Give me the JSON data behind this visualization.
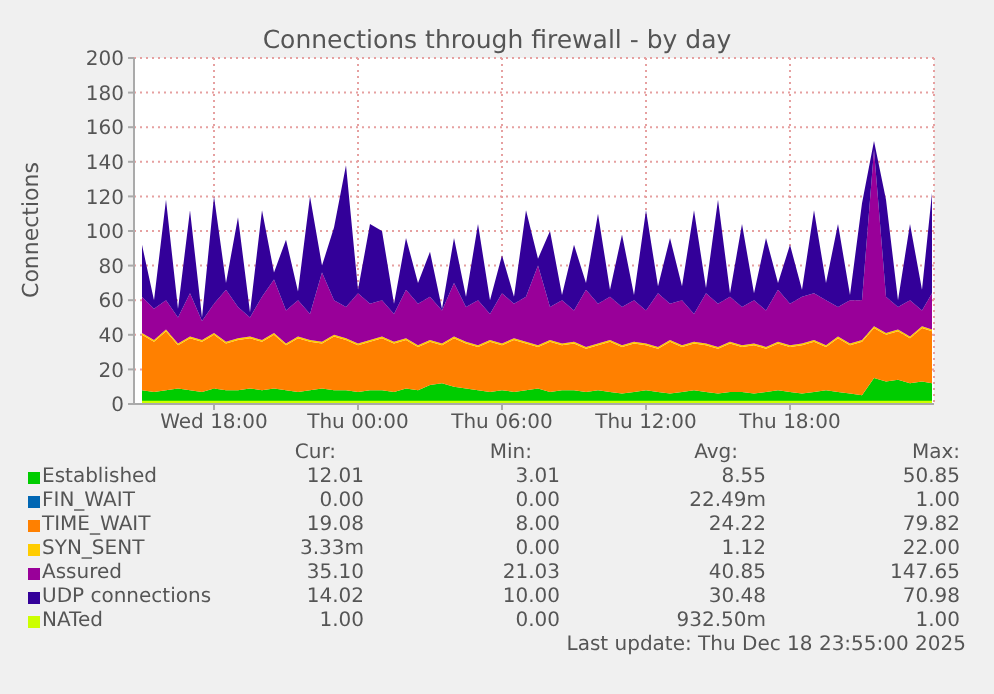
{
  "chart_data": {
    "type": "area",
    "title": "Connections through firewall - by day",
    "ylabel": "Connections",
    "x": [
      "2025-12-17T15:00",
      "2025-12-17T15:30",
      "2025-12-17T16:00",
      "2025-12-17T16:30",
      "2025-12-17T17:00",
      "2025-12-17T17:30",
      "2025-12-17T18:00",
      "2025-12-17T18:30",
      "2025-12-17T19:00",
      "2025-12-17T19:30",
      "2025-12-17T20:00",
      "2025-12-17T20:30",
      "2025-12-17T21:00",
      "2025-12-17T21:30",
      "2025-12-17T22:00",
      "2025-12-17T22:30",
      "2025-12-17T23:00",
      "2025-12-17T23:30",
      "2025-12-18T00:00",
      "2025-12-18T00:30",
      "2025-12-18T01:00",
      "2025-12-18T01:30",
      "2025-12-18T02:00",
      "2025-12-18T02:30",
      "2025-12-18T03:00",
      "2025-12-18T03:30",
      "2025-12-18T04:00",
      "2025-12-18T04:30",
      "2025-12-18T05:00",
      "2025-12-18T05:30",
      "2025-12-18T06:00",
      "2025-12-18T06:30",
      "2025-12-18T07:00",
      "2025-12-18T07:30",
      "2025-12-18T08:00",
      "2025-12-18T08:30",
      "2025-12-18T09:00",
      "2025-12-18T09:30",
      "2025-12-18T10:00",
      "2025-12-18T10:30",
      "2025-12-18T11:00",
      "2025-12-18T11:30",
      "2025-12-18T12:00",
      "2025-12-18T12:30",
      "2025-12-18T13:00",
      "2025-12-18T13:30",
      "2025-12-18T14:00",
      "2025-12-18T14:30",
      "2025-12-18T15:00",
      "2025-12-18T15:30",
      "2025-12-18T16:00",
      "2025-12-18T16:30",
      "2025-12-18T17:00",
      "2025-12-18T17:30",
      "2025-12-18T18:00",
      "2025-12-18T18:30",
      "2025-12-18T19:00",
      "2025-12-18T19:30",
      "2025-12-18T20:00",
      "2025-12-18T20:30",
      "2025-12-18T21:00",
      "2025-12-18T21:30",
      "2025-12-18T22:00",
      "2025-12-18T22:30",
      "2025-12-18T23:00",
      "2025-12-18T23:30",
      "2025-12-18T23:55"
    ],
    "series": [
      {
        "name": "Established",
        "color": "#00cc00",
        "values": [
          8,
          7,
          8,
          9,
          8,
          7,
          9,
          8,
          8,
          9,
          8,
          9,
          8,
          7,
          8,
          9,
          8,
          8,
          7,
          8,
          8,
          7,
          9,
          8,
          11,
          12,
          10,
          9,
          8,
          7,
          8,
          7,
          8,
          9,
          7,
          8,
          8,
          7,
          8,
          7,
          6,
          7,
          8,
          7,
          6,
          7,
          8,
          7,
          6,
          7,
          7,
          6,
          7,
          8,
          7,
          6,
          7,
          8,
          7,
          6,
          5,
          15,
          13,
          14,
          12,
          13,
          12
        ]
      },
      {
        "name": "FIN_WAIT",
        "color": "#0066b3",
        "values": [
          null,
          null,
          null,
          null,
          null,
          null,
          null,
          null,
          null,
          null,
          null,
          null,
          null,
          null,
          null,
          null,
          null,
          null,
          null,
          null,
          null,
          null,
          null,
          null,
          null,
          null,
          null,
          null,
          null,
          null,
          null,
          null,
          null,
          null,
          null,
          null,
          null,
          null,
          null,
          null,
          null,
          null,
          null,
          null,
          null,
          null,
          null,
          null,
          null,
          null,
          null,
          null,
          null,
          null,
          null,
          null,
          null,
          null,
          null,
          null,
          null,
          null,
          null,
          null,
          null,
          null,
          null
        ]
      },
      {
        "name": "TIME_WAIT",
        "color": "#ff8000",
        "values": [
          32,
          29,
          34,
          25,
          30,
          29,
          31,
          27,
          29,
          29,
          28,
          31,
          26,
          31,
          28,
          26,
          31,
          29,
          27,
          28,
          30,
          28,
          28,
          25,
          25,
          22,
          28,
          26,
          25,
          29,
          26,
          30,
          27,
          24,
          29,
          26,
          27,
          25,
          26,
          29,
          27,
          28,
          26,
          25,
          30,
          26,
          27,
          27,
          26,
          28,
          26,
          28,
          25,
          27,
          26,
          28,
          29,
          25,
          31,
          28,
          31,
          29,
          27,
          28,
          26,
          31,
          30
        ]
      },
      {
        "name": "SYN_SENT",
        "color": "#ffcc00",
        "values": [
          1,
          1,
          1,
          1,
          1,
          1,
          1,
          1,
          1,
          1,
          1,
          1,
          1,
          1,
          1,
          1,
          1,
          1,
          1,
          1,
          1,
          1,
          1,
          1,
          1,
          1,
          1,
          1,
          1,
          1,
          1,
          1,
          1,
          1,
          1,
          1,
          1,
          1,
          1,
          1,
          1,
          1,
          1,
          1,
          1,
          1,
          1,
          1,
          1,
          1,
          1,
          1,
          1,
          1,
          1,
          1,
          1,
          1,
          1,
          1,
          1,
          1,
          1,
          1,
          1,
          1,
          1
        ]
      },
      {
        "name": "Assured",
        "color": "#990099",
        "values": [
          21,
          18,
          17,
          15,
          25,
          11,
          17,
          30,
          18,
          11,
          25,
          31,
          19,
          21,
          15,
          40,
          20,
          18,
          29,
          21,
          21,
          16,
          28,
          24,
          25,
          19,
          31,
          20,
          26,
          15,
          29,
          20,
          26,
          46,
          19,
          25,
          18,
          33,
          23,
          25,
          22,
          24,
          19,
          31,
          21,
          26,
          16,
          29,
          25,
          26,
          22,
          25,
          21,
          30,
          24,
          27,
          27,
          26,
          17,
          25,
          23,
          102,
          21,
          13,
          21,
          9,
          21
        ]
      },
      {
        "name": "UDP connections",
        "color": "#330099",
        "values": [
          30,
          5,
          58,
          5,
          48,
          2,
          62,
          4,
          52,
          3,
          50,
          4,
          41,
          5,
          68,
          4,
          42,
          82,
          2,
          46,
          40,
          6,
          30,
          12,
          26,
          1,
          26,
          6,
          44,
          8,
          22,
          4,
          50,
          4,
          44,
          3,
          38,
          4,
          52,
          4,
          42,
          3,
          58,
          4,
          38,
          8,
          60,
          3,
          60,
          2,
          48,
          4,
          42,
          4,
          34,
          4,
          48,
          10,
          48,
          3,
          56,
          5,
          56,
          4,
          44,
          12,
          58
        ]
      },
      {
        "name": "NATed",
        "type": "line",
        "color": "#ccff00",
        "values": [
          1,
          1,
          1,
          1,
          1,
          1,
          1,
          1,
          1,
          1,
          1,
          1,
          1,
          1,
          1,
          1,
          1,
          1,
          1,
          1,
          1,
          1,
          1,
          1,
          1,
          1,
          1,
          1,
          1,
          1,
          1,
          1,
          1,
          1,
          1,
          1,
          1,
          1,
          1,
          1,
          1,
          1,
          1,
          1,
          1,
          1,
          1,
          1,
          1,
          1,
          1,
          1,
          1,
          1,
          1,
          1,
          1,
          1,
          1,
          1,
          1,
          1,
          1,
          1,
          1,
          1,
          1
        ]
      }
    ],
    "xlim": [
      "2025-12-17T14:40",
      "2025-12-19T00:00"
    ],
    "xticks": [
      {
        "value": "2025-12-17T18:00",
        "label": "Wed 18:00"
      },
      {
        "value": "2025-12-18T00:00",
        "label": "Thu 00:00"
      },
      {
        "value": "2025-12-18T06:00",
        "label": "Thu 06:00"
      },
      {
        "value": "2025-12-18T12:00",
        "label": "Thu 12:00"
      },
      {
        "value": "2025-12-18T18:00",
        "label": "Thu 18:00"
      }
    ],
    "ylim": [
      0,
      200
    ],
    "yticks": [
      0,
      20,
      40,
      60,
      80,
      100,
      120,
      140,
      160,
      180,
      200
    ],
    "grid": true,
    "legend": "bottom",
    "marker": "none",
    "stacked": true,
    "annotations": [
      "Cur:",
      "Min:",
      "Avg:",
      "Max:",
      "12.01",
      "3.01",
      "8.55",
      "50.85",
      "0.00",
      "0.00",
      "22.49m",
      "1.00",
      "19.08",
      "8.00",
      "24.22",
      "79.82",
      "3.33m",
      "0.00",
      "1.12",
      "22.00",
      "35.10",
      "21.03",
      "40.85",
      "147.65",
      "14.02",
      "10.00",
      "30.48",
      "70.98",
      "1.00",
      "0.00",
      "932.50m",
      "1.00",
      "Last update: Thu Dec 18 23:55:00 2025"
    ]
  }
}
